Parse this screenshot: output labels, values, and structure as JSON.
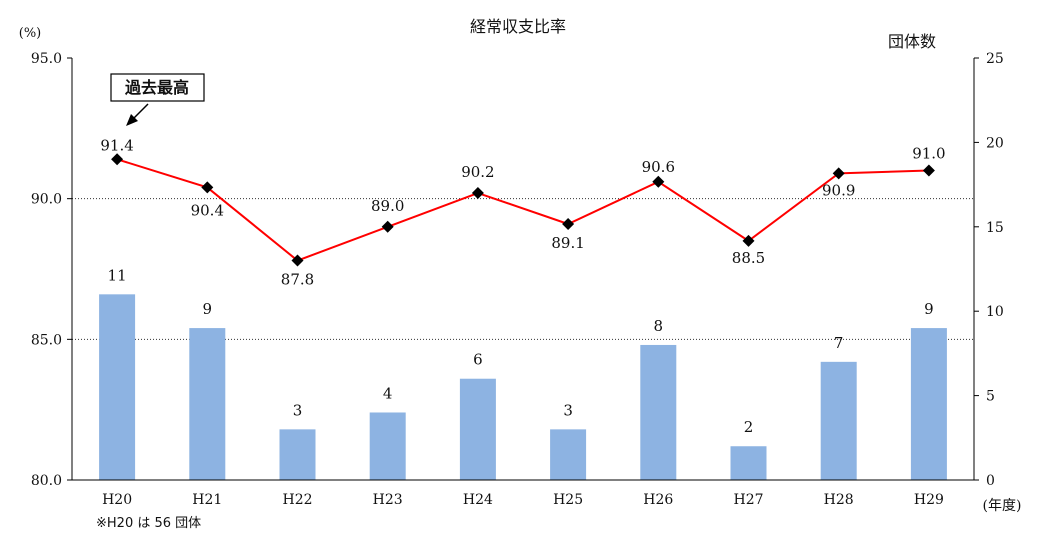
{
  "chart_data": {
    "type": "bar+line",
    "title": "経常収支比率",
    "left_axis_label": "(%)",
    "right_axis_label": "団体数",
    "x_unit_label": "(年度)",
    "note": "※H20 は 56 団体",
    "categories": [
      "H20",
      "H21",
      "H22",
      "H23",
      "H24",
      "H25",
      "H26",
      "H27",
      "H28",
      "H29"
    ],
    "left_axis": {
      "min": 80,
      "max": 95,
      "ticks": [
        "80.0",
        "85.0",
        "90.0",
        "95.0"
      ]
    },
    "right_axis": {
      "min": 0,
      "max": 25,
      "ticks": [
        "0",
        "5",
        "10",
        "15",
        "20",
        "25"
      ]
    },
    "grid": "dotted lines at 85.0 and 90.0",
    "series": [
      {
        "kind": "bar",
        "axis": "right",
        "color": "#8db3e2",
        "values": [
          11,
          9,
          3,
          4,
          6,
          3,
          8,
          2,
          7,
          9
        ],
        "labels": [
          "11",
          "9",
          "3",
          "4",
          "6",
          "3",
          "8",
          "2",
          "7",
          "9"
        ]
      },
      {
        "kind": "line",
        "axis": "left",
        "color": "#ff0000",
        "marker": "diamond",
        "marker_color": "#000000",
        "values": [
          91.4,
          90.4,
          87.8,
          89.0,
          90.2,
          89.1,
          90.6,
          88.5,
          90.9,
          91.0
        ],
        "labels": [
          "91.4",
          "90.4",
          "87.8",
          "89.0",
          "90.2",
          "89.1",
          "90.6",
          "88.5",
          "90.9",
          "91.0"
        ]
      }
    ],
    "annotation": {
      "text": "過去最高",
      "target_index": 0
    }
  }
}
